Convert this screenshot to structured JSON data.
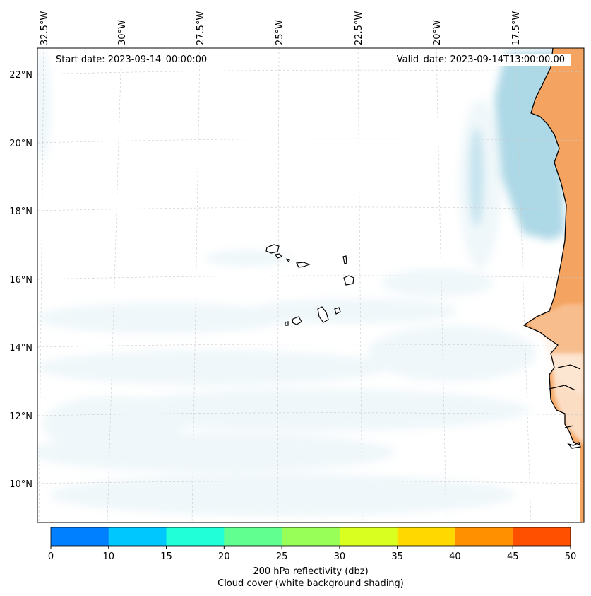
{
  "map": {
    "lon_labels": [
      "32.5°W",
      "30°W",
      "27.5°W",
      "25°W",
      "22.5°W",
      "20°W",
      "17.5°W"
    ],
    "lat_labels": [
      "22°N",
      "20°N",
      "18°N",
      "16°N",
      "14°N",
      "12°N",
      "10°N"
    ],
    "extent": {
      "lon_min": -33,
      "lon_max": -16,
      "lat_min": 9,
      "lat_max": 22.8
    },
    "start_label": "Start date: 2023-09-14_00:00:00",
    "valid_label": "Valid_date: 2023-09-14T13:00:00.00",
    "colors": {
      "land": "#f4a460",
      "cloud_high": "#add8e6",
      "cloud_light": "#e3f1f6",
      "coast": "#000000"
    }
  },
  "colorbar": {
    "ticks": [
      "0",
      "10",
      "15",
      "20",
      "25",
      "30",
      "35",
      "40",
      "45",
      "50"
    ],
    "colors": [
      "#0080ff",
      "#00c8ff",
      "#20ffd8",
      "#60ff90",
      "#98ff58",
      "#d8ff20",
      "#ffd800",
      "#ff9000",
      "#ff5000"
    ],
    "label_line1": "200 hPa reflectivity (dbz)",
    "label_line2": "Cloud cover (white background shading)"
  }
}
